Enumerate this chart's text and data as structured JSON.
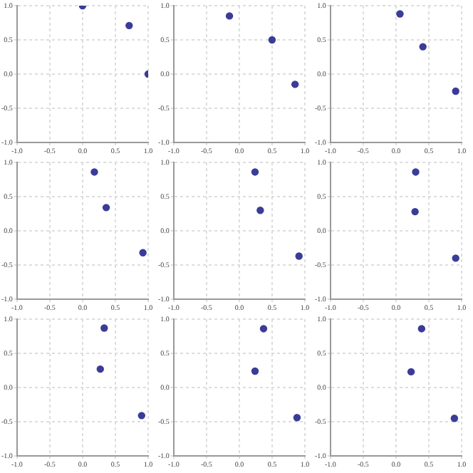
{
  "chart_data": [
    {
      "type": "scatter",
      "x": [
        0,
        0.71,
        1
      ],
      "values": [
        1,
        0.71,
        0
      ],
      "color": "#3b3b99",
      "xlim": [
        -1,
        1
      ],
      "ylim": [
        -1,
        1
      ],
      "xticks": [
        {
          "value": -1,
          "label": "-1.0"
        },
        {
          "value": -0.5,
          "label": "-0.5"
        },
        {
          "value": 0,
          "label": "0.0"
        },
        {
          "value": 0.5,
          "label": "0.5"
        },
        {
          "value": 1,
          "label": "1.0"
        }
      ],
      "yticks": [
        {
          "value": -1,
          "label": "-1.0"
        },
        {
          "value": -0.5,
          "label": "-0.5"
        },
        {
          "value": 0,
          "label": "0.0"
        },
        {
          "value": 0.5,
          "label": "0.5"
        },
        {
          "value": 1,
          "label": "1.0"
        }
      ],
      "grid": true,
      "marker": "circle",
      "legend": false
    },
    {
      "type": "scatter",
      "x": [
        -0.15,
        0.5,
        0.85
      ],
      "values": [
        0.85,
        0.5,
        -0.15
      ],
      "color": "#3b3b99",
      "xlim": [
        -1,
        1
      ],
      "ylim": [
        -1,
        1
      ],
      "xticks": [
        {
          "value": -1,
          "label": "-1.0"
        },
        {
          "value": -0.5,
          "label": "-0.5"
        },
        {
          "value": 0,
          "label": "0.0"
        },
        {
          "value": 0.5,
          "label": "0.5"
        },
        {
          "value": 1,
          "label": "1.0"
        }
      ],
      "yticks": [
        {
          "value": -1,
          "label": "-1.0"
        },
        {
          "value": -0.5,
          "label": "-0.5"
        },
        {
          "value": 0,
          "label": "0.0"
        },
        {
          "value": 0.5,
          "label": "0.5"
        },
        {
          "value": 1,
          "label": "1.0"
        }
      ],
      "grid": true,
      "marker": "circle",
      "legend": false
    },
    {
      "type": "scatter",
      "x": [
        0.06,
        0.41,
        0.91
      ],
      "values": [
        0.88,
        0.4,
        -0.25
      ],
      "color": "#3b3b99",
      "xlim": [
        -1,
        1
      ],
      "ylim": [
        -1,
        1
      ],
      "xticks": [
        {
          "value": -1,
          "label": "-1.0"
        },
        {
          "value": -0.5,
          "label": "-0.5"
        },
        {
          "value": 0,
          "label": "0.0"
        },
        {
          "value": 0.5,
          "label": "0.5"
        },
        {
          "value": 1,
          "label": "1.0"
        }
      ],
      "yticks": [
        {
          "value": -1,
          "label": "-1.0"
        },
        {
          "value": -0.5,
          "label": "-0.5"
        },
        {
          "value": 0,
          "label": "0.0"
        },
        {
          "value": 0.5,
          "label": "0.5"
        },
        {
          "value": 1,
          "label": "1.0"
        }
      ],
      "grid": true,
      "marker": "circle",
      "legend": false
    },
    {
      "type": "scatter",
      "x": [
        0.18,
        0.36,
        0.92
      ],
      "values": [
        0.86,
        0.34,
        -0.32
      ],
      "color": "#3b3b99",
      "xlim": [
        -1,
        1
      ],
      "ylim": [
        -1,
        1
      ],
      "xticks": [
        {
          "value": -1,
          "label": "-1.0"
        },
        {
          "value": -0.5,
          "label": "-0.5"
        },
        {
          "value": 0,
          "label": "0.0"
        },
        {
          "value": 0.5,
          "label": "0.5"
        },
        {
          "value": 1,
          "label": "1.0"
        }
      ],
      "yticks": [
        {
          "value": -1,
          "label": "-1.0"
        },
        {
          "value": -0.5,
          "label": "-0.5"
        },
        {
          "value": 0,
          "label": "0.0"
        },
        {
          "value": 0.5,
          "label": "0.5"
        },
        {
          "value": 1,
          "label": "1.0"
        }
      ],
      "grid": true,
      "marker": "circle",
      "legend": false
    },
    {
      "type": "scatter",
      "x": [
        0.24,
        0.32,
        0.91
      ],
      "values": [
        0.86,
        0.3,
        -0.37
      ],
      "color": "#3b3b99",
      "xlim": [
        -1,
        1
      ],
      "ylim": [
        -1,
        1
      ],
      "xticks": [
        {
          "value": -1,
          "label": "-1.0"
        },
        {
          "value": -0.5,
          "label": "-0.5"
        },
        {
          "value": 0,
          "label": "0.0"
        },
        {
          "value": 0.5,
          "label": "0.5"
        },
        {
          "value": 1,
          "label": "1.0"
        }
      ],
      "yticks": [
        {
          "value": -1,
          "label": "-1.0"
        },
        {
          "value": -0.5,
          "label": "-0.5"
        },
        {
          "value": 0,
          "label": "0.0"
        },
        {
          "value": 0.5,
          "label": "0.5"
        },
        {
          "value": 1,
          "label": "1.0"
        }
      ],
      "grid": true,
      "marker": "circle",
      "legend": false
    },
    {
      "type": "scatter",
      "x": [
        0.3,
        0.29,
        0.91
      ],
      "values": [
        0.86,
        0.28,
        -0.4
      ],
      "color": "#3b3b99",
      "xlim": [
        -1,
        1
      ],
      "ylim": [
        -1,
        1
      ],
      "xticks": [
        {
          "value": -1,
          "label": "-1.0"
        },
        {
          "value": -0.5,
          "label": "-0.5"
        },
        {
          "value": 0,
          "label": "0.0"
        },
        {
          "value": 0.5,
          "label": "0.5"
        },
        {
          "value": 1,
          "label": "1.0"
        }
      ],
      "yticks": [
        {
          "value": -1,
          "label": "-1.0"
        },
        {
          "value": -0.5,
          "label": "-0.5"
        },
        {
          "value": 0,
          "label": "0.0"
        },
        {
          "value": 0.5,
          "label": "0.5"
        },
        {
          "value": 1,
          "label": "1.0"
        }
      ],
      "grid": true,
      "marker": "circle",
      "legend": false
    },
    {
      "type": "scatter",
      "x": [
        0.33,
        0.27,
        0.9
      ],
      "values": [
        0.87,
        0.27,
        -0.41
      ],
      "color": "#3b3b99",
      "xlim": [
        -1,
        1
      ],
      "ylim": [
        -1,
        1
      ],
      "xticks": [
        {
          "value": -1,
          "label": "-1.0"
        },
        {
          "value": -0.5,
          "label": "-0.5"
        },
        {
          "value": 0,
          "label": "0.0"
        },
        {
          "value": 0.5,
          "label": "0.5"
        },
        {
          "value": 1,
          "label": "1.0"
        }
      ],
      "yticks": [
        {
          "value": -1,
          "label": "-1.0"
        },
        {
          "value": -0.5,
          "label": "-0.5"
        },
        {
          "value": 0,
          "label": "0.0"
        },
        {
          "value": 0.5,
          "label": "0.5"
        },
        {
          "value": 1,
          "label": "1.0"
        }
      ],
      "grid": true,
      "marker": "circle",
      "legend": false
    },
    {
      "type": "scatter",
      "x": [
        0.37,
        0.24,
        0.88
      ],
      "values": [
        0.86,
        0.24,
        -0.44
      ],
      "color": "#3b3b99",
      "xlim": [
        -1,
        1
      ],
      "ylim": [
        -1,
        1
      ],
      "xticks": [
        {
          "value": -1,
          "label": "-1.0"
        },
        {
          "value": -0.5,
          "label": "-0.5"
        },
        {
          "value": 0,
          "label": "0.0"
        },
        {
          "value": 0.5,
          "label": "0.5"
        },
        {
          "value": 1,
          "label": "1.0"
        }
      ],
      "yticks": [
        {
          "value": -1,
          "label": "-1.0"
        },
        {
          "value": -0.5,
          "label": "-0.5"
        },
        {
          "value": 0,
          "label": "0.0"
        },
        {
          "value": 0.5,
          "label": "0.5"
        },
        {
          "value": 1,
          "label": "1.0"
        }
      ],
      "grid": true,
      "marker": "circle",
      "legend": false
    },
    {
      "type": "scatter",
      "x": [
        0.39,
        0.23,
        0.89
      ],
      "values": [
        0.86,
        0.23,
        -0.45
      ],
      "color": "#3b3b99",
      "xlim": [
        -1,
        1
      ],
      "ylim": [
        -1,
        1
      ],
      "xticks": [
        {
          "value": -1,
          "label": "-1.0"
        },
        {
          "value": -0.5,
          "label": "-0.5"
        },
        {
          "value": 0,
          "label": "0.0"
        },
        {
          "value": 0.5,
          "label": "0.5"
        },
        {
          "value": 1,
          "label": "1.0"
        }
      ],
      "yticks": [
        {
          "value": -1,
          "label": "-1.0"
        },
        {
          "value": -0.5,
          "label": "-0.5"
        },
        {
          "value": 0,
          "label": "0.0"
        },
        {
          "value": 0.5,
          "label": "0.5"
        },
        {
          "value": 1,
          "label": "1.0"
        }
      ],
      "grid": true,
      "marker": "circle",
      "legend": false
    }
  ]
}
